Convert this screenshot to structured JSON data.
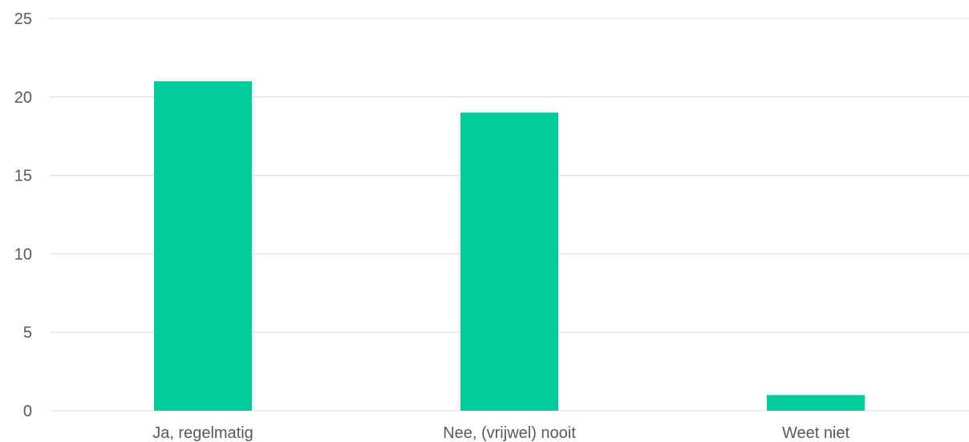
{
  "chart_data": {
    "type": "bar",
    "categories": [
      "Ja, regelmatig",
      "Nee, (vrijwel) nooit",
      "Weet niet"
    ],
    "values": [
      21,
      19,
      1
    ],
    "yticks": [
      "0",
      "5",
      "10",
      "15",
      "20",
      "25"
    ],
    "ylim": [
      0,
      25
    ],
    "grid": true,
    "colors": {
      "bar": "#00CC99",
      "grid": "#D9D9D9",
      "text": "#595959"
    }
  }
}
